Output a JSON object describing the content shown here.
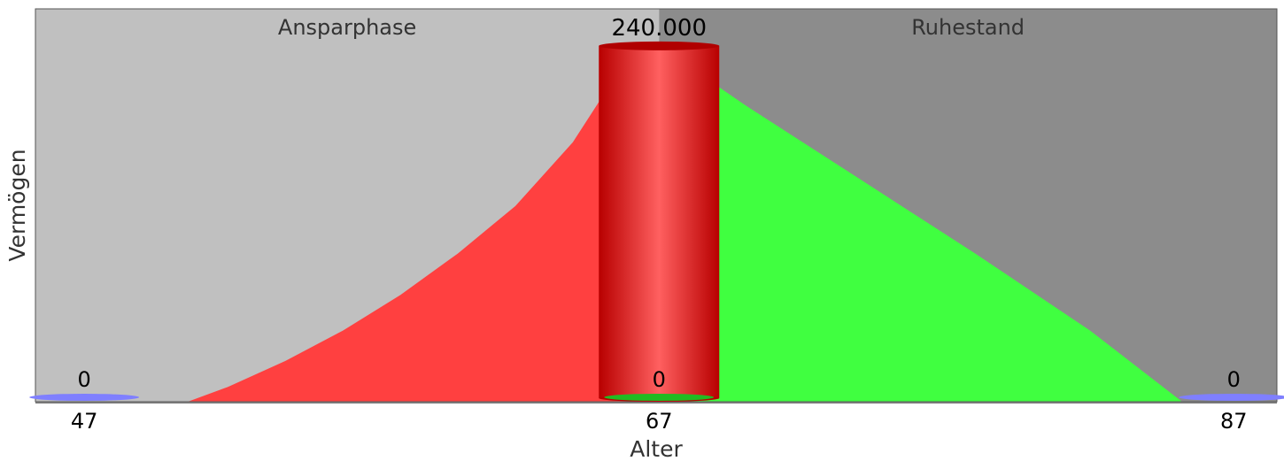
{
  "chart_data": {
    "type": "area",
    "xlabel": "Alter",
    "ylabel": "Vermögen",
    "phases": [
      {
        "label": "Ansparphase",
        "x_start": 47,
        "x_end": 67,
        "color": "#c0c0c0"
      },
      {
        "label": "Ruhestand",
        "x_start": 67,
        "x_end": 87,
        "color": "#8c8c8c"
      }
    ],
    "x_ticks": [
      47,
      67,
      87
    ],
    "x_tick_labels": [
      "47",
      "67",
      "87"
    ],
    "xlim": [
      45.3,
      88.5
    ],
    "ylim": [
      0,
      265000
    ],
    "series": [
      {
        "name": "Ansparphase",
        "color": "#ff4040",
        "x": [
          50.6,
          52,
          54,
          56,
          58,
          60,
          62,
          64,
          65,
          67
        ],
        "y": [
          0,
          10000,
          27500,
          48000,
          72000,
          100000,
          132000,
          175000,
          205000,
          240000
        ]
      },
      {
        "name": "Ruhestand",
        "color": "#40ff40",
        "x": [
          67,
          70,
          74,
          78,
          82,
          85.2
        ],
        "y": [
          240000,
          200000,
          150000,
          100000,
          48000,
          0
        ]
      }
    ],
    "markers": [
      {
        "x": 47,
        "value": 0,
        "value_label": "0",
        "shape": "disc",
        "color": "#7f7fff"
      },
      {
        "x": 67,
        "value": 240000,
        "value_label": "240.000",
        "shape": "cylinder",
        "color": "#d42020"
      },
      {
        "x": 67,
        "value": 0,
        "value_label": "0",
        "shape": "disc",
        "color": "#22bb22"
      },
      {
        "x": 87,
        "value": 0,
        "value_label": "0",
        "shape": "disc",
        "color": "#7f7fff"
      }
    ],
    "grid": false,
    "legend": "none"
  }
}
